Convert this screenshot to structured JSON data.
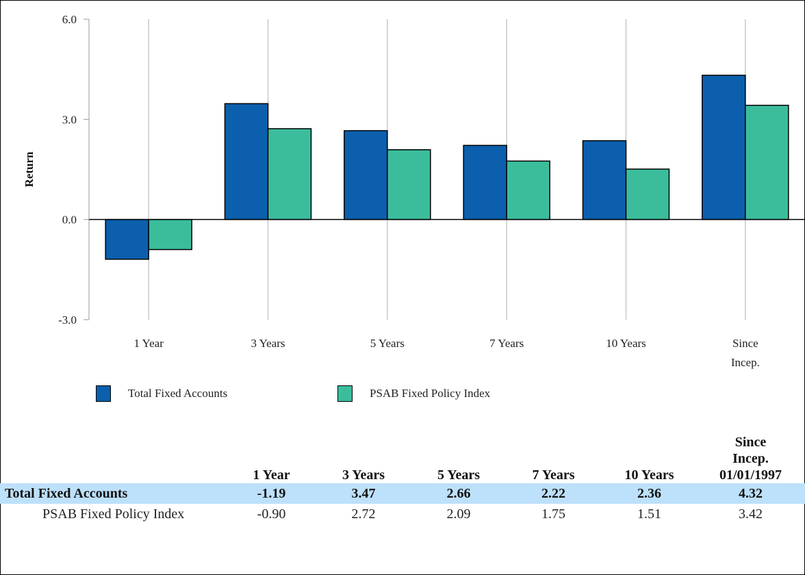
{
  "chart_data": {
    "type": "bar",
    "ylabel": "Return",
    "xlabel": "",
    "ylim": [
      -3.0,
      6.0
    ],
    "yticks": [
      "6.0",
      "3.0",
      "0.0",
      "-3.0"
    ],
    "categories": [
      "1 Year",
      "3 Years",
      "5 Years",
      "7 Years",
      "10 Years",
      "Since Incep."
    ],
    "series": [
      {
        "name": "Total Fixed Accounts",
        "color": "#0b5fad",
        "values": [
          -1.19,
          3.47,
          2.66,
          2.22,
          2.36,
          4.32
        ]
      },
      {
        "name": "PSAB Fixed Policy Index",
        "color": "#3bbd9c",
        "values": [
          -0.9,
          2.72,
          2.09,
          1.75,
          1.51,
          3.42
        ]
      }
    ],
    "grid": "vertical",
    "legend": "bottom-left"
  },
  "table": {
    "headers": [
      "",
      "1 Year",
      "3 Years",
      "5 Years",
      "7 Years",
      "10 Years",
      "Since Incep. 01/01/1997"
    ],
    "rows": [
      {
        "name": "Total Fixed Accounts",
        "values": [
          "-1.19",
          "3.47",
          "2.66",
          "2.22",
          "2.36",
          "4.32"
        ],
        "highlight_color": "#bde0fb"
      },
      {
        "name": "PSAB Fixed Policy Index",
        "values": [
          "-0.90",
          "2.72",
          "2.09",
          "1.75",
          "1.51",
          "3.42"
        ]
      }
    ]
  }
}
